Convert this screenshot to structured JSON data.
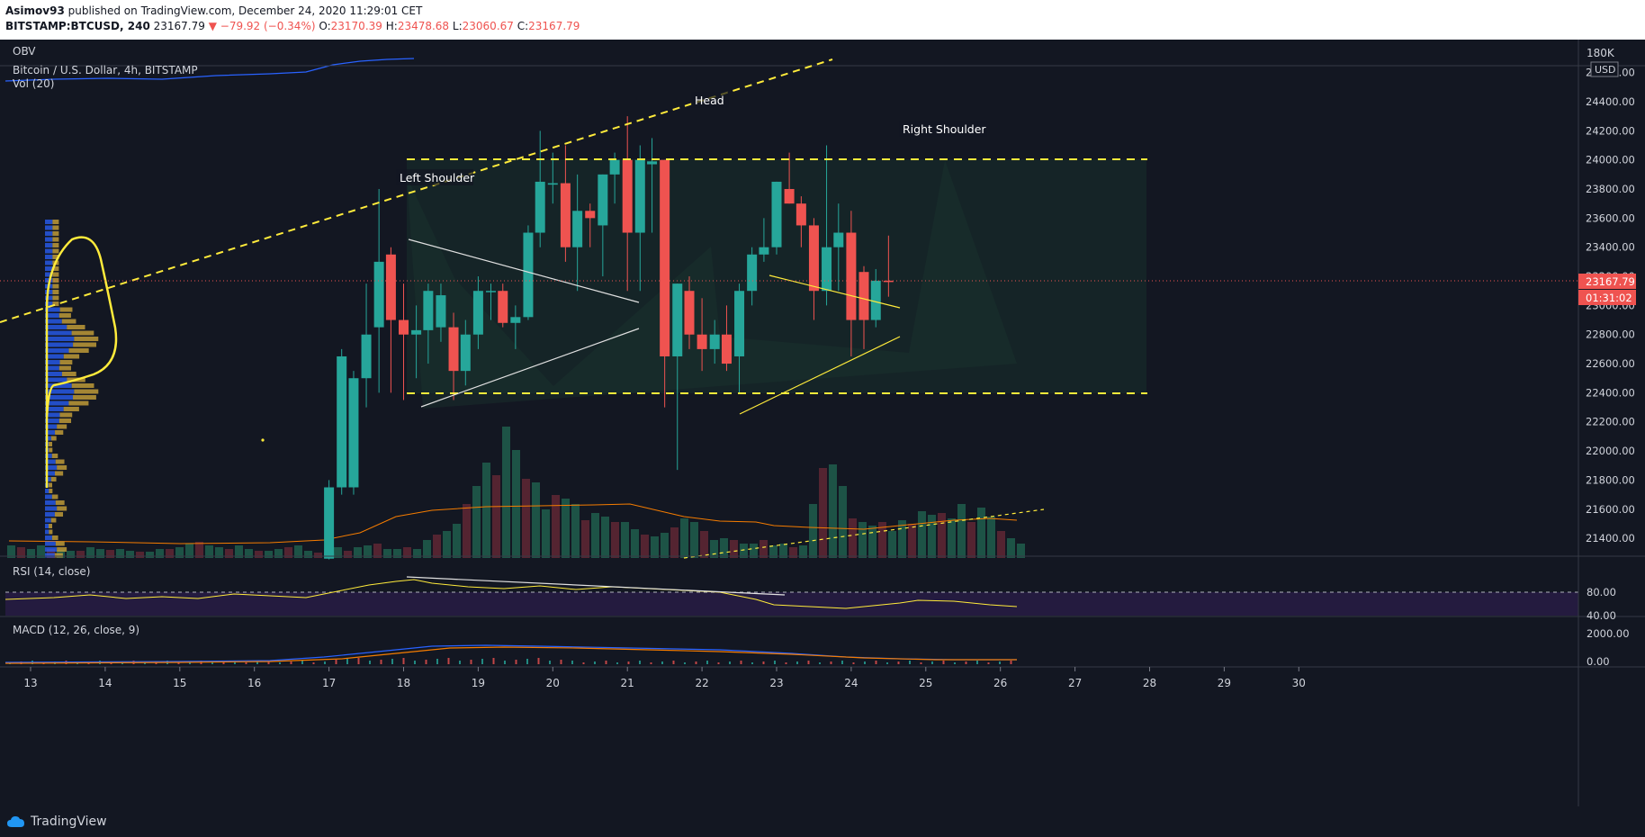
{
  "header": {
    "line1": {
      "user": "Asimov93",
      "rest": " published on TradingView.com, December 24, 2020 11:29:01 CET"
    },
    "line2": {
      "symbol": "BITSTAMP:BTCUSD, 240",
      "price": "23167.79",
      "change": "▼ −79.92 (−0.34%)",
      "o_label": "O:",
      "o": "23170.39",
      "h_label": "H:",
      "h": "23478.68",
      "l_label": "L:",
      "l": "23060.67",
      "c_label": "C:",
      "c": "23167.79"
    }
  },
  "panes": {
    "obv": {
      "label": "OBV",
      "axis_label": "180K"
    },
    "main": {
      "title": "Bitcoin / U.S. Dollar, 4h, BITSTAMP",
      "vol_label": "Vol (20)",
      "currency": "USD",
      "last_price": "23167.79",
      "countdown": "01:31:02"
    },
    "rsi": {
      "label": "RSI (14, close)",
      "ticks": [
        "80.00",
        "40.00"
      ]
    },
    "macd": {
      "label": "MACD (12, 26, close, 9)",
      "ticks": [
        "2000.00",
        "0.00"
      ]
    }
  },
  "annotations": {
    "left_shoulder": "Left Shoulder",
    "head": "Head",
    "right_shoulder": "Right Shoulder"
  },
  "footer": {
    "brand": "TradingView"
  },
  "colors": {
    "up": "#26a69a",
    "down": "#ef5350",
    "background": "#131722",
    "annotation": "#ffeb3b"
  },
  "chart_data": {
    "type": "candlestick",
    "title": "Bitcoin / U.S. Dollar, 4h, BITSTAMP",
    "y_ticks": [
      24600,
      24400,
      24200,
      24000,
      23800,
      23600,
      23400,
      23200,
      23000,
      22800,
      22600,
      22400,
      22200,
      22000,
      21800,
      21600,
      21400
    ],
    "ylim": [
      21255,
      24615
    ],
    "x_ticks": [
      {
        "label": "13",
        "day": 13
      },
      {
        "label": "14",
        "day": 14
      },
      {
        "label": "15",
        "day": 15
      },
      {
        "label": "16",
        "day": 16
      },
      {
        "label": "17",
        "day": 17
      },
      {
        "label": "18",
        "day": 18
      },
      {
        "label": "19",
        "day": 19
      },
      {
        "label": "20",
        "day": 20
      },
      {
        "label": "21",
        "day": 21
      },
      {
        "label": "22",
        "day": 22
      },
      {
        "label": "23",
        "day": 23
      },
      {
        "label": "24",
        "day": 24
      },
      {
        "label": "25",
        "day": 25
      },
      {
        "label": "26",
        "day": 26
      },
      {
        "label": "27",
        "day": 27
      },
      {
        "label": "28",
        "day": 28
      },
      {
        "label": "29",
        "day": 29
      },
      {
        "label": "30",
        "day": 30
      }
    ],
    "candles": [
      {
        "d": 17.0,
        "o": 21260,
        "h": 21450,
        "l": 21255,
        "c": 21300
      },
      {
        "d": 17.0,
        "o": 21280,
        "h": 21800,
        "l": 21270,
        "c": 21750
      },
      {
        "d": 17.17,
        "o": 21750,
        "h": 22700,
        "l": 21700,
        "c": 22650
      },
      {
        "d": 17.33,
        "o": 21750,
        "h": 22550,
        "l": 21700,
        "c": 22500
      },
      {
        "d": 17.5,
        "o": 22500,
        "h": 23150,
        "l": 22300,
        "c": 22800
      },
      {
        "d": 17.67,
        "o": 22850,
        "h": 23800,
        "l": 22400,
        "c": 23300
      },
      {
        "d": 17.83,
        "o": 23350,
        "h": 23400,
        "l": 22400,
        "c": 22900
      },
      {
        "d": 18.0,
        "o": 22900,
        "h": 23150,
        "l": 22350,
        "c": 22800
      },
      {
        "d": 18.17,
        "o": 22800,
        "h": 23000,
        "l": 22500,
        "c": 22830
      },
      {
        "d": 18.33,
        "o": 22830,
        "h": 23150,
        "l": 22600,
        "c": 23100
      },
      {
        "d": 18.5,
        "o": 22850,
        "h": 23150,
        "l": 22750,
        "c": 23070
      },
      {
        "d": 18.67,
        "o": 22850,
        "h": 22950,
        "l": 22350,
        "c": 22550
      },
      {
        "d": 18.83,
        "o": 22550,
        "h": 22900,
        "l": 22450,
        "c": 22800
      },
      {
        "d": 19.0,
        "o": 22800,
        "h": 23200,
        "l": 22700,
        "c": 23100
      },
      {
        "d": 19.17,
        "o": 23100,
        "h": 23150,
        "l": 22900,
        "c": 23100
      },
      {
        "d": 19.33,
        "o": 23100,
        "h": 23150,
        "l": 22850,
        "c": 22880
      },
      {
        "d": 19.5,
        "o": 22880,
        "h": 23000,
        "l": 22700,
        "c": 22920
      },
      {
        "d": 19.67,
        "o": 22920,
        "h": 23550,
        "l": 22900,
        "c": 23500
      },
      {
        "d": 19.83,
        "o": 23500,
        "h": 24200,
        "l": 23400,
        "c": 23850
      },
      {
        "d": 20.0,
        "o": 23830,
        "h": 24050,
        "l": 23700,
        "c": 23840
      },
      {
        "d": 20.17,
        "o": 23840,
        "h": 24100,
        "l": 23300,
        "c": 23400
      },
      {
        "d": 20.33,
        "o": 23400,
        "h": 23900,
        "l": 23100,
        "c": 23650
      },
      {
        "d": 20.5,
        "o": 23650,
        "h": 23700,
        "l": 23400,
        "c": 23600
      },
      {
        "d": 20.67,
        "o": 23550,
        "h": 23900,
        "l": 23200,
        "c": 23900
      },
      {
        "d": 20.83,
        "o": 23900,
        "h": 24050,
        "l": 23700,
        "c": 24000
      },
      {
        "d": 21.0,
        "o": 24000,
        "h": 24300,
        "l": 23100,
        "c": 23500
      },
      {
        "d": 21.17,
        "o": 23500,
        "h": 24100,
        "l": 23100,
        "c": 24000
      },
      {
        "d": 21.33,
        "o": 23970,
        "h": 24150,
        "l": 23500,
        "c": 23990
      },
      {
        "d": 21.5,
        "o": 24000,
        "h": 24000,
        "l": 22300,
        "c": 22650
      },
      {
        "d": 21.67,
        "o": 22650,
        "h": 23150,
        "l": 21870,
        "c": 23150
      },
      {
        "d": 21.83,
        "o": 23100,
        "h": 23200,
        "l": 22700,
        "c": 22800
      },
      {
        "d": 22.0,
        "o": 22800,
        "h": 23050,
        "l": 22550,
        "c": 22700
      },
      {
        "d": 22.17,
        "o": 22700,
        "h": 22900,
        "l": 22600,
        "c": 22800
      },
      {
        "d": 22.33,
        "o": 22800,
        "h": 23000,
        "l": 22550,
        "c": 22600
      },
      {
        "d": 22.5,
        "o": 22650,
        "h": 23150,
        "l": 22400,
        "c": 23100
      },
      {
        "d": 22.67,
        "o": 23100,
        "h": 23400,
        "l": 23000,
        "c": 23350
      },
      {
        "d": 22.83,
        "o": 23350,
        "h": 23600,
        "l": 23300,
        "c": 23400
      },
      {
        "d": 23.0,
        "o": 23400,
        "h": 23850,
        "l": 23350,
        "c": 23850
      },
      {
        "d": 23.17,
        "o": 23800,
        "h": 24050,
        "l": 23700,
        "c": 23700
      },
      {
        "d": 23.33,
        "o": 23700,
        "h": 23750,
        "l": 23400,
        "c": 23550
      },
      {
        "d": 23.5,
        "o": 23550,
        "h": 23600,
        "l": 22900,
        "c": 23100
      },
      {
        "d": 23.67,
        "o": 23100,
        "h": 24100,
        "l": 23000,
        "c": 23400
      },
      {
        "d": 23.83,
        "o": 23400,
        "h": 23700,
        "l": 23100,
        "c": 23500
      },
      {
        "d": 24.0,
        "o": 23500,
        "h": 23650,
        "l": 22650,
        "c": 22900
      },
      {
        "d": 24.17,
        "o": 23230,
        "h": 23270,
        "l": 22700,
        "c": 22900
      },
      {
        "d": 24.33,
        "o": 22900,
        "h": 23250,
        "l": 22850,
        "c": 23170
      },
      {
        "d": 24.5,
        "o": 23170,
        "h": 23480,
        "l": 23060,
        "c": 23168
      }
    ]
  }
}
